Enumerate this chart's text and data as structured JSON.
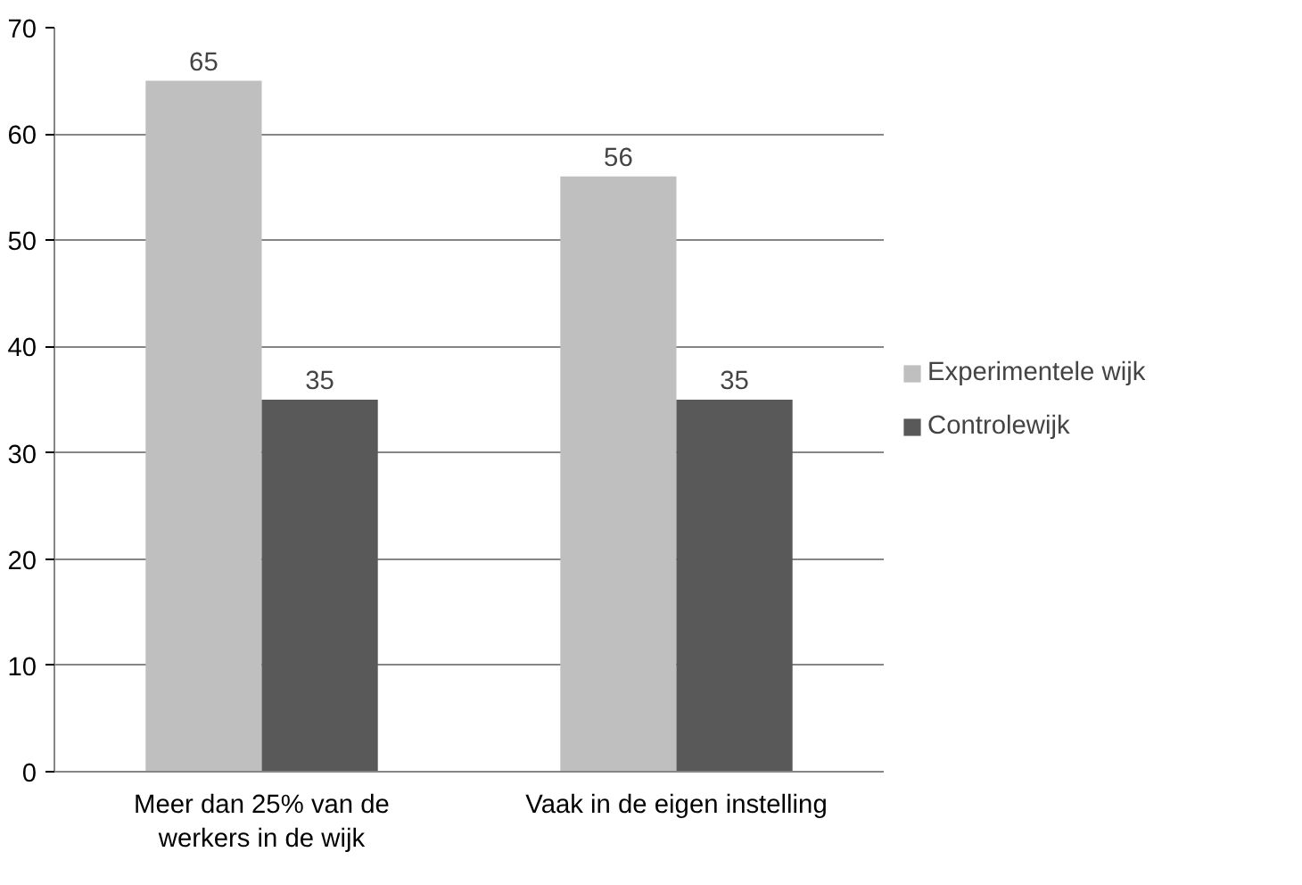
{
  "chart_data": {
    "type": "bar",
    "categories": [
      "Meer dan 25% van de\nwerkers in de wijk",
      "Vaak in de eigen instelling"
    ],
    "series": [
      {
        "name": "Experimentele wijk",
        "color": "#bfbfbf",
        "values": [
          65,
          56
        ]
      },
      {
        "name": "Controlewijk",
        "color": "#595959",
        "values": [
          35,
          35
        ]
      }
    ],
    "ylim": [
      0,
      70
    ],
    "yticks": [
      0,
      10,
      20,
      30,
      40,
      50,
      60,
      70
    ],
    "grid": "y",
    "legend": "right",
    "data_labels": true
  }
}
